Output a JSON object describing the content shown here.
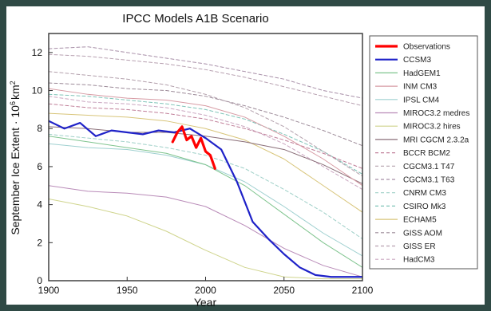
{
  "chart_data": {
    "type": "line",
    "title": "IPCC Models A1B Scenario",
    "xlabel": "Year",
    "ylabel": "September Ice Extent · 10^6 km^2",
    "ylabel_parts": {
      "main": "September Ice Extent · 10",
      "exp": "6",
      "unit": "km",
      "unit_exp": "2"
    },
    "xlim": [
      1900,
      2100
    ],
    "ylim": [
      0,
      13
    ],
    "x_ticks": [
      "1900",
      "1950",
      "2000",
      "2050",
      "2100"
    ],
    "y_ticks": [
      "0",
      "2",
      "4",
      "6",
      "8",
      "10",
      "12"
    ],
    "x_tick_values": [
      1900,
      1950,
      2000,
      2050,
      2100
    ],
    "y_tick_values": [
      0,
      2,
      4,
      6,
      8,
      10,
      12
    ],
    "grid": false,
    "legend_position": "right",
    "series": [
      {
        "name": "Observations",
        "color": "#ff0000",
        "style": "solid",
        "width": 3.2,
        "x": [
          1979,
          1982,
          1985,
          1988,
          1991,
          1994,
          1997,
          2000,
          2003,
          2006
        ],
        "y": [
          7.3,
          7.8,
          8.1,
          7.4,
          7.6,
          7.0,
          7.5,
          6.8,
          6.6,
          5.9
        ]
      },
      {
        "name": "CCSM3",
        "color": "#1f22c8",
        "style": "solid",
        "width": 2.2,
        "x": [
          1900,
          1910,
          1920,
          1930,
          1940,
          1950,
          1960,
          1970,
          1980,
          1990,
          2000,
          2010,
          2020,
          2030,
          2040,
          2050,
          2060,
          2070,
          2080,
          2090,
          2100
        ],
        "y": [
          8.4,
          8.0,
          8.3,
          7.6,
          7.9,
          7.8,
          7.7,
          7.9,
          7.8,
          8.0,
          7.5,
          6.9,
          5.2,
          3.1,
          2.2,
          1.4,
          0.7,
          0.3,
          0.2,
          0.2,
          0.2
        ]
      },
      {
        "name": "HadGEM1",
        "color": "#7fc48e",
        "style": "solid",
        "width": 1,
        "x": [
          1900,
          1925,
          1950,
          1975,
          2000,
          2025,
          2050,
          2075,
          2100
        ],
        "y": [
          7.6,
          7.3,
          7.0,
          6.7,
          6.1,
          5.0,
          3.5,
          2.0,
          0.7
        ]
      },
      {
        "name": "INM CM3",
        "color": "#d79ba4",
        "style": "solid",
        "width": 1,
        "x": [
          1900,
          1925,
          1950,
          1975,
          2000,
          2025,
          2050,
          2075,
          2100
        ],
        "y": [
          10.1,
          9.8,
          9.6,
          9.5,
          9.2,
          8.6,
          7.6,
          6.4,
          5.0
        ]
      },
      {
        "name": "IPSL CM4",
        "color": "#9fd0d0",
        "style": "solid",
        "width": 1,
        "x": [
          1900,
          1925,
          1950,
          1975,
          2000,
          2025,
          2050,
          2075,
          2100
        ],
        "y": [
          7.2,
          7.0,
          6.9,
          6.6,
          6.1,
          5.2,
          3.9,
          2.5,
          1.3
        ]
      },
      {
        "name": "MIROC3.2 medres",
        "color": "#b98bb8",
        "style": "solid",
        "width": 1,
        "x": [
          1900,
          1925,
          1950,
          1975,
          2000,
          2025,
          2050,
          2075,
          2100
        ],
        "y": [
          5.0,
          4.7,
          4.6,
          4.4,
          3.9,
          2.9,
          1.7,
          0.8,
          0.2
        ]
      },
      {
        "name": "MIROC3.2 hires",
        "color": "#cfd48c",
        "style": "solid",
        "width": 1,
        "x": [
          1900,
          1925,
          1950,
          1975,
          2000,
          2025,
          2050,
          2075,
          2100
        ],
        "y": [
          4.3,
          3.9,
          3.4,
          2.6,
          1.6,
          0.7,
          0.2,
          0.1,
          0.1
        ]
      },
      {
        "name": "MRI CGCM 2.3.2a",
        "color": "#8a6e78",
        "style": "solid",
        "width": 1,
        "x": [
          1900,
          1925,
          1950,
          1975,
          2000,
          2025,
          2050,
          2075,
          2100
        ],
        "y": [
          8.1,
          8.0,
          7.8,
          7.8,
          7.6,
          7.3,
          6.9,
          6.1,
          5.1
        ]
      },
      {
        "name": "BCCR BCM2",
        "color": "#c07f99",
        "style": "dashed",
        "width": 1,
        "x": [
          1900,
          1925,
          1950,
          1975,
          2000,
          2025,
          2050,
          2075,
          2100
        ],
        "y": [
          9.3,
          9.1,
          9.0,
          8.8,
          8.5,
          8.0,
          7.4,
          6.7,
          5.9
        ]
      },
      {
        "name": "CGCM3.1 T47",
        "color": "#b3a0ac",
        "style": "dashed",
        "width": 1,
        "x": [
          1900,
          1925,
          1950,
          1975,
          2000,
          2025,
          2050,
          2075,
          2100
        ],
        "y": [
          11.0,
          10.8,
          10.6,
          10.3,
          9.8,
          9.1,
          8.1,
          6.8,
          5.5
        ]
      },
      {
        "name": "CGCM3.1 T63",
        "color": "#a88fa8",
        "style": "dashed",
        "width": 1,
        "x": [
          1900,
          1925,
          1950,
          1975,
          2000,
          2025,
          2050,
          2075,
          2100
        ],
        "y": [
          12.2,
          12.3,
          12.0,
          11.7,
          11.4,
          11.0,
          10.6,
          10.0,
          9.6
        ]
      },
      {
        "name": "CNRM CM3",
        "color": "#9fd0c8",
        "style": "dashed",
        "width": 1,
        "x": [
          1900,
          1925,
          1950,
          1975,
          2000,
          2025,
          2050,
          2075,
          2100
        ],
        "y": [
          7.7,
          7.5,
          7.3,
          7.0,
          6.6,
          5.9,
          4.8,
          3.6,
          2.2
        ]
      },
      {
        "name": "CSIRO Mk3",
        "color": "#7fc4b8",
        "style": "dashed",
        "width": 1,
        "x": [
          1900,
          1925,
          1950,
          1975,
          2000,
          2025,
          2050,
          2075,
          2100
        ],
        "y": [
          9.8,
          9.7,
          9.5,
          9.3,
          9.0,
          8.5,
          7.7,
          6.8,
          5.6
        ]
      },
      {
        "name": "ECHAM5",
        "color": "#d8c57a",
        "style": "solid",
        "width": 1,
        "x": [
          1900,
          1925,
          1950,
          1975,
          2000,
          2025,
          2050,
          2075,
          2100
        ],
        "y": [
          8.8,
          8.7,
          8.6,
          8.4,
          8.0,
          7.4,
          6.4,
          5.0,
          3.6
        ]
      },
      {
        "name": "GISS AOM",
        "color": "#9c8a98",
        "style": "dashed",
        "width": 1,
        "x": [
          1900,
          1925,
          1950,
          1975,
          2000,
          2025,
          2050,
          2075,
          2100
        ],
        "y": [
          10.4,
          10.3,
          10.1,
          10.0,
          9.7,
          9.2,
          8.6,
          7.9,
          7.1
        ]
      },
      {
        "name": "GISS ER",
        "color": "#b7a0b0",
        "style": "dashed",
        "width": 1,
        "x": [
          1900,
          1925,
          1950,
          1975,
          2000,
          2025,
          2050,
          2075,
          2100
        ],
        "y": [
          11.9,
          11.8,
          11.6,
          11.4,
          11.1,
          10.7,
          10.2,
          9.7,
          9.2
        ]
      },
      {
        "name": "HadCM3",
        "color": "#caa6c0",
        "style": "dashed",
        "width": 1,
        "x": [
          1900,
          1925,
          1950,
          1975,
          2000,
          2025,
          2050,
          2075,
          2100
        ],
        "y": [
          9.7,
          9.4,
          9.3,
          9.1,
          8.7,
          8.1,
          7.2,
          6.0,
          4.8
        ]
      }
    ]
  }
}
